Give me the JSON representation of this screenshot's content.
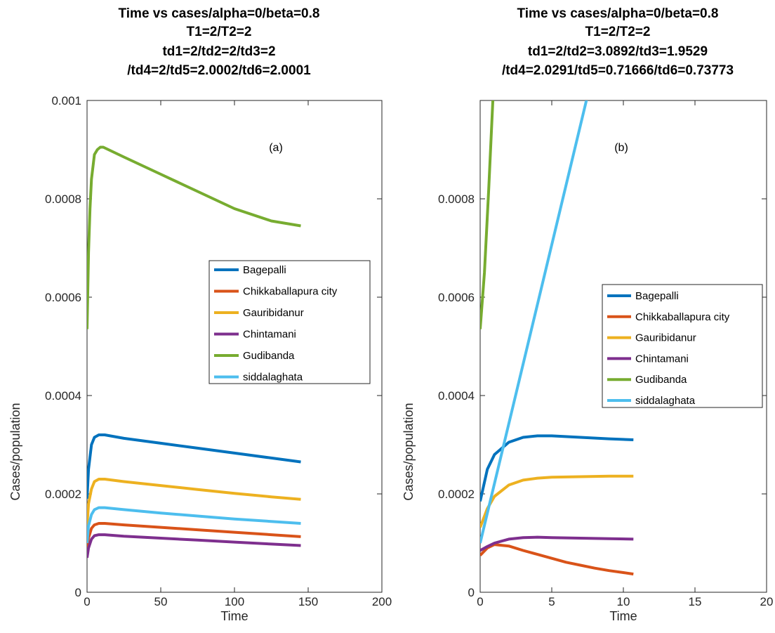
{
  "chart_data": [
    {
      "panel": "a",
      "type": "line",
      "title_lines": [
        "Time vs cases/alpha=0/beta=0.8",
        "T1=2/T2=2",
        "td1=2/td2=2/td3=2",
        "/td4=2/td5=2.0002/td6=2.0001"
      ],
      "xlabel": "Time",
      "ylabel": "Cases/population",
      "xlim": [
        0,
        200
      ],
      "ylim": [
        0,
        0.001
      ],
      "xticks": [
        0,
        50,
        100,
        150,
        200
      ],
      "xtick_labels": [
        "0",
        "50",
        "100",
        "150",
        "200"
      ],
      "yticks": [
        0,
        0.0002,
        0.0004,
        0.0006,
        0.0008,
        0.001
      ],
      "ytick_labels": [
        "0",
        "0.0002",
        "0.0004",
        "0.0006",
        "0.0008",
        "0.001"
      ],
      "annotation": "(a)",
      "legend_position": "middle-right",
      "grid": false,
      "series": [
        {
          "name": "Bagepalli",
          "color": "#0072BD",
          "x": [
            0,
            1,
            3,
            5,
            8,
            12,
            25,
            50,
            75,
            100,
            125,
            145
          ],
          "y": [
            0.00019,
            0.00025,
            0.0003,
            0.000315,
            0.00032,
            0.00032,
            0.000313,
            0.000303,
            0.000293,
            0.000283,
            0.000273,
            0.000265
          ]
        },
        {
          "name": "Chikkaballapura city",
          "color": "#D95319",
          "x": [
            0,
            1,
            3,
            5,
            8,
            12,
            25,
            50,
            75,
            100,
            125,
            145
          ],
          "y": [
            8.5e-05,
            0.00011,
            0.00013,
            0.000137,
            0.00014,
            0.00014,
            0.000137,
            0.000132,
            0.000127,
            0.000122,
            0.000117,
            0.000113
          ]
        },
        {
          "name": "Gauribidanur",
          "color": "#EDB120",
          "x": [
            0,
            1,
            3,
            5,
            8,
            12,
            25,
            50,
            75,
            100,
            125,
            145
          ],
          "y": [
            0.000135,
            0.00018,
            0.00021,
            0.000225,
            0.00023,
            0.00023,
            0.000225,
            0.000217,
            0.000209,
            0.000201,
            0.000194,
            0.000189
          ]
        },
        {
          "name": "Chintamani",
          "color": "#7E2F8E",
          "x": [
            0,
            1,
            3,
            5,
            8,
            12,
            25,
            50,
            75,
            100,
            125,
            145
          ],
          "y": [
            7e-05,
            9e-05,
            0.000108,
            0.000115,
            0.000117,
            0.000117,
            0.000114,
            0.00011,
            0.000106,
            0.000102,
            9.8e-05,
            9.5e-05
          ]
        },
        {
          "name": "Gudibanda",
          "color": "#77AC30",
          "x": [
            0,
            1,
            2,
            3,
            5,
            7,
            9,
            11,
            25,
            50,
            75,
            100,
            125,
            145
          ],
          "y": [
            0.000535,
            0.00069,
            0.00078,
            0.00084,
            0.00089,
            0.0009,
            0.000905,
            0.000905,
            0.000885,
            0.00085,
            0.000815,
            0.00078,
            0.000755,
            0.000745
          ]
        },
        {
          "name": "siddalaghata",
          "color": "#4DBEEE",
          "x": [
            0,
            1,
            3,
            5,
            8,
            12,
            25,
            50,
            75,
            100,
            125,
            145
          ],
          "y": [
            0.0001,
            0.000135,
            0.000158,
            0.000168,
            0.000172,
            0.000172,
            0.000168,
            0.000161,
            0.000155,
            0.000149,
            0.000144,
            0.00014
          ]
        }
      ]
    },
    {
      "panel": "b",
      "type": "line",
      "title_lines": [
        "Time vs cases/alpha=0/beta=0.8",
        "T1=2/T2=2",
        "td1=2/td2=3.0892/td3=1.9529",
        "/td4=2.0291/td5=0.71666/td6=0.73773"
      ],
      "xlabel": "Time",
      "ylabel": "Cases/population",
      "xlim": [
        0,
        20
      ],
      "ylim": [
        0,
        0.001
      ],
      "xticks": [
        0,
        5,
        10,
        15,
        20
      ],
      "xtick_labels": [
        "0",
        "5",
        "10",
        "15",
        "20"
      ],
      "yticks": [
        0,
        0.0002,
        0.0004,
        0.0006,
        0.0008
      ],
      "ytick_labels": [
        "0",
        "0.0002",
        "0.0004",
        "0.0006",
        "0.0008"
      ],
      "annotation": "(b)",
      "legend_position": "middle-right",
      "grid": false,
      "series": [
        {
          "name": "Bagepalli",
          "color": "#0072BD",
          "x": [
            0,
            0.5,
            1,
            2,
            3,
            4,
            5,
            7,
            9,
            10.7
          ],
          "y": [
            0.000185,
            0.00025,
            0.00028,
            0.000305,
            0.000315,
            0.000318,
            0.000318,
            0.000315,
            0.000312,
            0.00031
          ]
        },
        {
          "name": "Chikkaballapura city",
          "color": "#D95319",
          "x": [
            0,
            0.5,
            1,
            2,
            3,
            4,
            5,
            6,
            7,
            8,
            9,
            10,
            10.7
          ],
          "y": [
            7.5e-05,
            9e-05,
            9.7e-05,
            9.4e-05,
            8.5e-05,
            7.7e-05,
            6.9e-05,
            6.1e-05,
            5.5e-05,
            4.9e-05,
            4.4e-05,
            4e-05,
            3.7e-05
          ]
        },
        {
          "name": "Gauribidanur",
          "color": "#EDB120",
          "x": [
            0,
            0.5,
            1,
            2,
            3,
            4,
            5,
            7,
            9,
            10.7
          ],
          "y": [
            0.000132,
            0.00017,
            0.000195,
            0.000218,
            0.000228,
            0.000232,
            0.000234,
            0.000235,
            0.000236,
            0.000236
          ]
        },
        {
          "name": "Chintamani",
          "color": "#7E2F8E",
          "x": [
            0,
            0.5,
            1,
            2,
            3,
            4,
            5,
            7,
            9,
            10.7
          ],
          "y": [
            8.5e-05,
            9.3e-05,
            0.0001,
            0.000108,
            0.000111,
            0.000112,
            0.000111,
            0.00011,
            0.000109,
            0.000108
          ]
        },
        {
          "name": "Gudibanda",
          "color": "#77AC30",
          "x": [
            0,
            0.3,
            0.6,
            0.9
          ],
          "y": [
            0.000535,
            0.00065,
            0.00082,
            0.00101
          ]
        },
        {
          "name": "siddalaghata",
          "color": "#4DBEEE",
          "x": [
            0,
            7.5
          ],
          "y": [
            0.0001,
            0.00101
          ]
        }
      ]
    }
  ]
}
